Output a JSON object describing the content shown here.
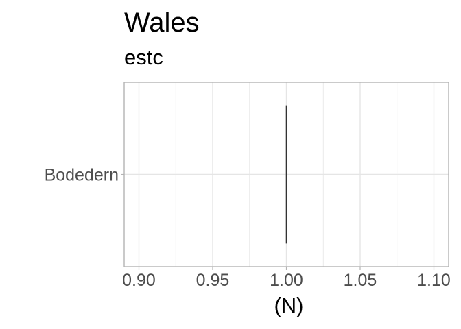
{
  "chart_data": {
    "type": "bar",
    "title": "Wales",
    "subtitle": "estc",
    "xlabel": "(N)",
    "ylabel": "",
    "categories": [
      "Bodedern"
    ],
    "values": [
      1.0
    ],
    "xlim": [
      0.89,
      1.11
    ],
    "x_ticks": [
      0.9,
      0.95,
      1.0,
      1.05,
      1.1
    ],
    "x_tick_labels": [
      "0.90",
      "0.95",
      "1.00",
      "1.05",
      "1.10"
    ],
    "grid": true,
    "colors": {
      "bar": "#333333",
      "grid": "#e5e5e5",
      "panel_border": "#b3b3b3"
    }
  }
}
